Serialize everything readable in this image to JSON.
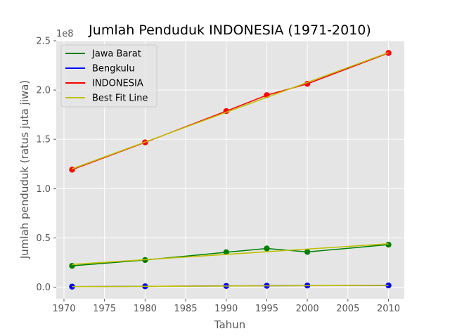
{
  "chart_data": {
    "type": "line",
    "title": "Jumlah Penduduk INDONESIA (1971-2010)",
    "xlabel": "Tahun",
    "ylabel": "Jumlah penduduk (ratus juta jiwa)",
    "y_offset_label": "1e8",
    "x_ticks": [
      1970,
      1975,
      1980,
      1985,
      1990,
      1995,
      2000,
      2005,
      2010
    ],
    "y_ticks": [
      0,
      50000000,
      100000000,
      150000000,
      200000000,
      250000000
    ],
    "y_tick_labels": [
      "0.0",
      "0.5",
      "1.0",
      "1.5",
      "2.0",
      "2.5"
    ],
    "xlim": [
      1969.05,
      2011.95
    ],
    "ylim": [
      -11800000,
      250000000
    ],
    "grid": true,
    "legend_position": "upper-left",
    "x": [
      1971,
      1980,
      1990,
      1995,
      2000,
      2010
    ],
    "series": [
      {
        "name": "Jawa Barat",
        "color": "#008000",
        "values": [
          21600000,
          27500000,
          35400000,
          39200000,
          35700000,
          43100000
        ]
      },
      {
        "name": "Bengkulu",
        "color": "#0000ff",
        "values": [
          500000,
          800000,
          1200000,
          1400000,
          1600000,
          1700000
        ]
      },
      {
        "name": "INDONESIA",
        "color": "#ff0000",
        "values": [
          119200000,
          146900000,
          178600000,
          194800000,
          206300000,
          237600000
        ]
      }
    ],
    "best_fit_lines": [
      {
        "name": "Best Fit Line",
        "color": "#bfbf00",
        "x": [
          1971,
          2010
        ],
        "values": [
          120000000,
          238000000
        ]
      },
      {
        "color": "#bfbf00",
        "x": [
          1971,
          2010
        ],
        "values": [
          23000000,
          44000000
        ]
      },
      {
        "color": "#bfbf00",
        "x": [
          1971,
          2010
        ],
        "values": [
          500000,
          1800000
        ]
      }
    ]
  }
}
